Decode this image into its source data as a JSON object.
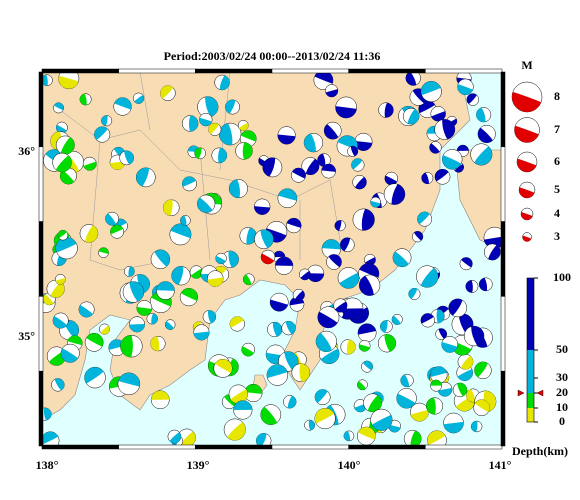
{
  "title": "Period:2003/02/24 00:00--2013/02/24 11:36",
  "lon_labels": [
    "138°",
    "139°",
    "140°",
    "141°"
  ],
  "lat_labels": [
    "35°",
    "36°"
  ],
  "legend": {
    "title": "M",
    "magnitudes": [
      8,
      7,
      6,
      5,
      4,
      3
    ]
  },
  "depth_scale": {
    "ticks": [
      100,
      50,
      30,
      20,
      10,
      0
    ],
    "label": "Depth(km)"
  }
}
